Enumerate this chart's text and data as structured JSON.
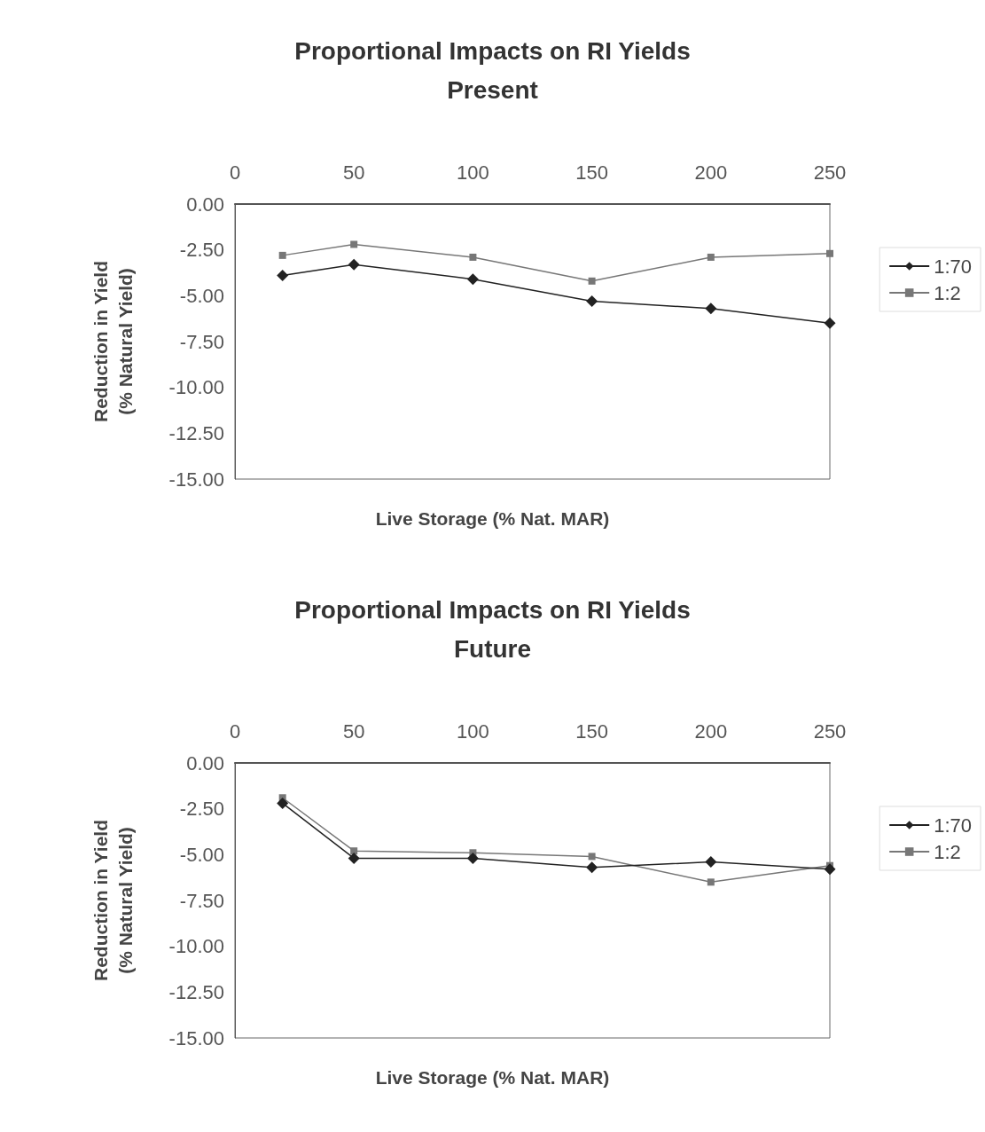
{
  "chart_data": [
    {
      "type": "line",
      "title": "Proportional Impacts on RI Yields\nPresent",
      "xlabel": "Live Storage (% Nat. MAR)",
      "ylabel": "Reduction in Yield\n(% Natural Yield)",
      "x": [
        20,
        50,
        100,
        150,
        200,
        250
      ],
      "xlim": [
        0,
        250
      ],
      "xticks": [
        0,
        50,
        100,
        150,
        200,
        250
      ],
      "ylim": [
        -15,
        0
      ],
      "yticks": [
        {
          "value": -15,
          "label": "-15.00"
        },
        {
          "value": -12.5,
          "label": "-12.50"
        },
        {
          "value": -10,
          "label": "-10.00"
        },
        {
          "value": -7.5,
          "label": "-7.50"
        },
        {
          "value": -5,
          "label": "-5.00"
        },
        {
          "value": -2.5,
          "label": "-2.50"
        },
        {
          "value": 0,
          "label": "0.00"
        }
      ],
      "grid": false,
      "legend": "right",
      "series": [
        {
          "name": "1:70",
          "color": "#222222",
          "marker": "diamond",
          "values": [
            -3.9,
            -3.3,
            -4.1,
            -5.3,
            -5.7,
            -6.5
          ]
        },
        {
          "name": "1:2",
          "color": "#777777",
          "marker": "square",
          "values": [
            -2.8,
            -2.2,
            -2.9,
            -4.2,
            -2.9,
            -2.7
          ]
        }
      ]
    },
    {
      "type": "line",
      "title": "Proportional Impacts on RI Yields\nFuture",
      "xlabel": "Live Storage (% Nat. MAR)",
      "ylabel": "Reduction in Yield\n(% Natural Yield)",
      "x": [
        20,
        50,
        100,
        150,
        200,
        250
      ],
      "xlim": [
        0,
        250
      ],
      "xticks": [
        0,
        50,
        100,
        150,
        200,
        250
      ],
      "ylim": [
        -15,
        0
      ],
      "yticks": [
        {
          "value": -15,
          "label": "-15.00"
        },
        {
          "value": -12.5,
          "label": "-12.50"
        },
        {
          "value": -10,
          "label": "-10.00"
        },
        {
          "value": -7.5,
          "label": "-7.50"
        },
        {
          "value": -5,
          "label": "-5.00"
        },
        {
          "value": -2.5,
          "label": "-2.50"
        },
        {
          "value": 0,
          "label": "0.00"
        }
      ],
      "grid": false,
      "legend": "right",
      "series": [
        {
          "name": "1:70",
          "color": "#222222",
          "marker": "diamond",
          "values": [
            -2.2,
            -5.2,
            -5.2,
            -5.7,
            -5.4,
            -5.8
          ]
        },
        {
          "name": "1:2",
          "color": "#777777",
          "marker": "square",
          "values": [
            -1.9,
            -4.8,
            -4.9,
            -5.1,
            -6.5,
            -5.6
          ]
        }
      ]
    }
  ]
}
